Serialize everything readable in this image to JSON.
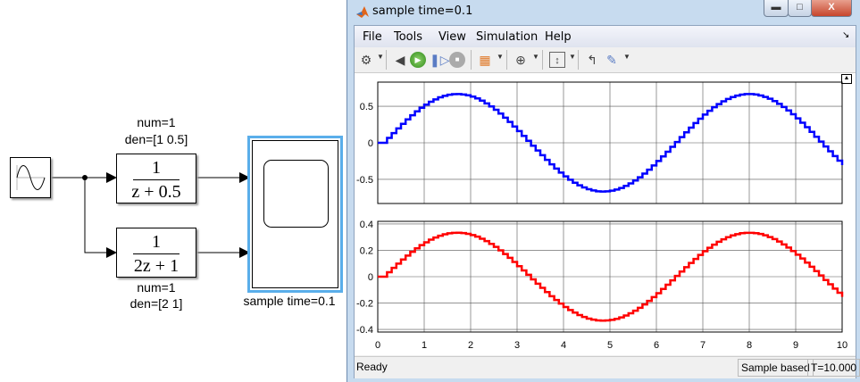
{
  "diagram": {
    "block1": {
      "label_num": "num=1",
      "label_den": "den=[1 0.5]",
      "tf_num": "1",
      "tf_den": "z + 0.5"
    },
    "block2": {
      "label_num": "num=1",
      "label_den": "den=[2 1]",
      "tf_num": "1",
      "tf_den": "2z + 1"
    },
    "scope_label": "sample time=0.1",
    "scope_highlight_color": "#5aaeea"
  },
  "window": {
    "title": "sample time=0.1",
    "icon": "matlab-icon",
    "controls": {
      "minimize": "minimize-icon",
      "maximize": "maximize-icon",
      "close": "close-icon"
    },
    "menu": [
      "File",
      "Tools",
      "View",
      "Simulation",
      "Help"
    ],
    "toolbar": [
      "gear-icon",
      "step-back-icon",
      "run-icon",
      "step-forward-icon",
      "stop-icon",
      "highlight-block-icon",
      "zoom-in-icon",
      "autoscale-icon",
      "triggers-icon",
      "cursor-measurements-icon"
    ],
    "status": {
      "left": "Ready",
      "mode": "Sample based",
      "time": "T=10.000"
    }
  },
  "chart_data": [
    {
      "type": "line",
      "style": "stairs",
      "color": "#0000ff",
      "grid": true,
      "xlim": [
        0,
        10
      ],
      "ylim": [
        -0.83,
        0.83
      ],
      "yticks": [
        "0.5",
        "0",
        "-0.5"
      ],
      "ytick_values": [
        0.5,
        0,
        -0.5
      ],
      "x_start": 0,
      "x_step": 0.1,
      "y": [
        0,
        0,
        0.067,
        0.133,
        0.197,
        0.26,
        0.32,
        0.377,
        0.43,
        0.479,
        0.522,
        0.561,
        0.594,
        0.622,
        0.643,
        0.657,
        0.665,
        0.667,
        0.661,
        0.65,
        0.631,
        0.607,
        0.576,
        0.539,
        0.497,
        0.451,
        0.399,
        0.344,
        0.285,
        0.223,
        0.16,
        0.094,
        0.028,
        -0.039,
        -0.105,
        -0.17,
        -0.234,
        -0.295,
        -0.353,
        -0.408,
        -0.459,
        -0.505,
        -0.546,
        -0.581,
        -0.611,
        -0.635,
        -0.652,
        -0.663,
        -0.667,
        -0.664,
        -0.655,
        -0.64,
        -0.618,
        -0.589,
        -0.555,
        -0.515,
        -0.471,
        -0.421,
        -0.367,
        -0.31,
        -0.249,
        -0.186,
        -0.122,
        -0.055,
        0.011,
        0.078,
        0.143,
        0.208,
        0.27,
        0.33,
        0.386,
        0.438,
        0.486,
        0.529,
        0.567,
        0.599,
        0.626,
        0.646,
        0.659,
        0.666,
        0.666,
        0.66,
        0.647,
        0.627,
        0.602,
        0.57,
        0.533,
        0.49,
        0.442,
        0.39,
        0.334,
        0.275,
        0.213,
        0.149,
        0.083,
        0.017,
        -0.05,
        -0.116,
        -0.181,
        -0.244,
        -0.305
      ]
    },
    {
      "type": "line",
      "style": "stairs",
      "color": "#ff0000",
      "grid": true,
      "xlim": [
        0,
        10
      ],
      "ylim": [
        -0.42,
        0.42
      ],
      "yticks": [
        "0.4",
        "0.2",
        "0",
        "-0.2",
        "-0.4"
      ],
      "ytick_values": [
        0.4,
        0.2,
        0,
        -0.2,
        -0.4
      ],
      "xticks": [
        "0",
        "1",
        "2",
        "3",
        "4",
        "5",
        "6",
        "7",
        "8",
        "9",
        "10"
      ],
      "x_start": 0,
      "x_step": 0.1,
      "y": [
        0,
        0,
        0.034,
        0.067,
        0.099,
        0.13,
        0.16,
        0.189,
        0.215,
        0.24,
        0.261,
        0.281,
        0.297,
        0.311,
        0.322,
        0.329,
        0.333,
        0.334,
        0.331,
        0.325,
        0.316,
        0.304,
        0.288,
        0.27,
        0.249,
        0.226,
        0.2,
        0.172,
        0.143,
        0.112,
        0.08,
        0.047,
        0.014,
        -0.02,
        -0.053,
        -0.085,
        -0.117,
        -0.148,
        -0.177,
        -0.204,
        -0.23,
        -0.253,
        -0.273,
        -0.291,
        -0.306,
        -0.318,
        -0.326,
        -0.332,
        -0.334,
        -0.332,
        -0.328,
        -0.32,
        -0.309,
        -0.295,
        -0.278,
        -0.258,
        -0.236,
        -0.211,
        -0.184,
        -0.155,
        -0.125,
        -0.093,
        -0.061,
        -0.028,
        0.006,
        0.039,
        0.072,
        0.104,
        0.135,
        0.165,
        0.193,
        0.219,
        0.243,
        0.265,
        0.284,
        0.3,
        0.313,
        0.323,
        0.33,
        0.333,
        0.333,
        0.33,
        0.324,
        0.314,
        0.301,
        0.285,
        0.267,
        0.245,
        0.221,
        0.195,
        0.167,
        0.138,
        0.107,
        0.075,
        0.042,
        0.009,
        -0.025,
        -0.058,
        -0.091,
        -0.122,
        -0.153
      ]
    }
  ]
}
